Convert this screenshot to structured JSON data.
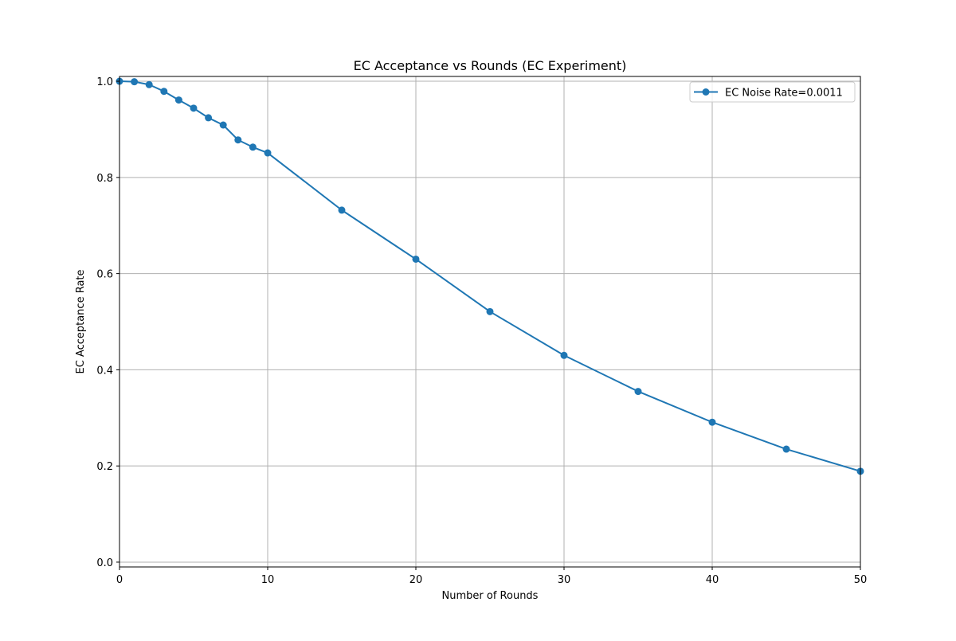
{
  "chart_data": {
    "type": "line",
    "title": "EC Acceptance vs Rounds (EC Experiment)",
    "xlabel": "Number of Rounds",
    "ylabel": "EC Acceptance Rate",
    "xlim": [
      0,
      50
    ],
    "ylim": [
      -0.01,
      1.01
    ],
    "xticks": [
      0,
      10,
      20,
      30,
      40,
      50
    ],
    "xtick_labels": [
      "0",
      "10",
      "20",
      "30",
      "40",
      "50"
    ],
    "yticks": [
      0.0,
      0.2,
      0.4,
      0.6,
      0.8,
      1.0
    ],
    "ytick_labels": [
      "0.0",
      "0.2",
      "0.4",
      "0.6",
      "0.8",
      "1.0"
    ],
    "grid": true,
    "legend_position": "top-right",
    "series": [
      {
        "name": "EC Noise Rate=0.0011",
        "color": "#1f77b4",
        "marker": "circle",
        "x": [
          0,
          1,
          2,
          3,
          4,
          5,
          6,
          7,
          8,
          9,
          10,
          15,
          20,
          25,
          30,
          35,
          40,
          45,
          50
        ],
        "y": [
          1.0,
          0.999,
          0.993,
          0.979,
          0.961,
          0.944,
          0.924,
          0.909,
          0.878,
          0.863,
          0.851,
          0.732,
          0.63,
          0.521,
          0.43,
          0.355,
          0.291,
          0.235,
          0.189
        ]
      }
    ]
  }
}
